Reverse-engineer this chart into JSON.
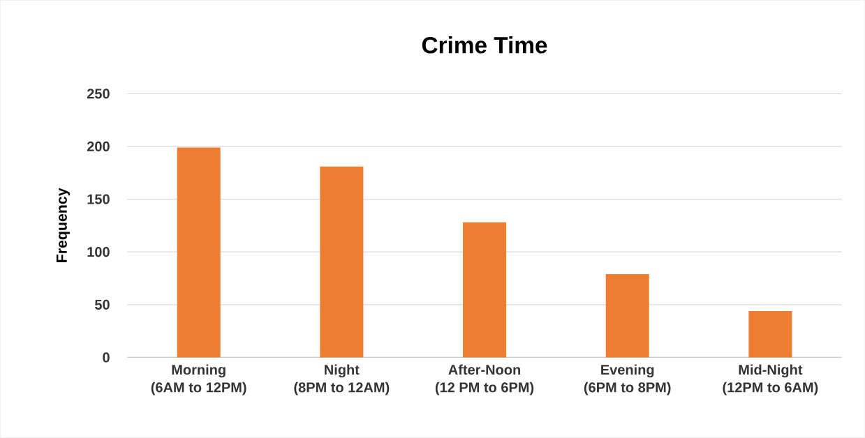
{
  "chart_data": {
    "type": "bar",
    "title": "Crime Time",
    "ylabel": "Frequency",
    "categories": [
      "Morning (6AM to 12PM)",
      "Night (8PM to 12AM)",
      "After-Noon (12 PM to 6PM)",
      "Evening (6PM to 8PM)",
      "Mid-Night (12PM to 6AM)"
    ],
    "values": [
      199,
      181,
      128,
      79,
      44
    ],
    "color": "#ed7d31",
    "ylim": [
      0,
      250
    ],
    "yticks": [
      0,
      50,
      100,
      150,
      200,
      250
    ],
    "grid": "y"
  }
}
